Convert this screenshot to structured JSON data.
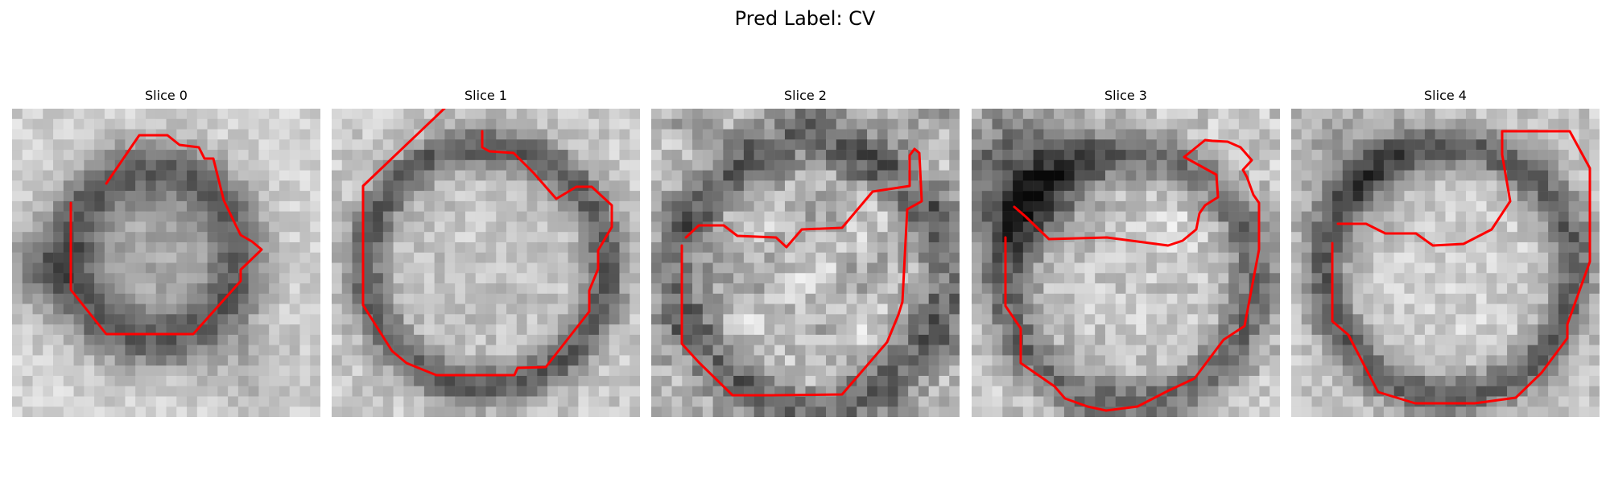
{
  "figure": {
    "title": "Pred Label: CV"
  },
  "panels": [
    {
      "label": "Slice 0",
      "image_description": "grayscale microscopy patch",
      "overlay_color": "#ff0000"
    },
    {
      "label": "Slice 1",
      "image_description": "grayscale microscopy patch",
      "overlay_color": "#ff0000"
    },
    {
      "label": "Slice 2",
      "image_description": "grayscale microscopy patch",
      "overlay_color": "#ff0000"
    },
    {
      "label": "Slice 3",
      "image_description": "grayscale microscopy patch",
      "overlay_color": "#ff0000"
    },
    {
      "label": "Slice 4",
      "image_description": "grayscale microscopy patch",
      "overlay_color": "#ff0000"
    }
  ],
  "colors": {
    "contour": "#ff0000",
    "background": "#ffffff"
  }
}
